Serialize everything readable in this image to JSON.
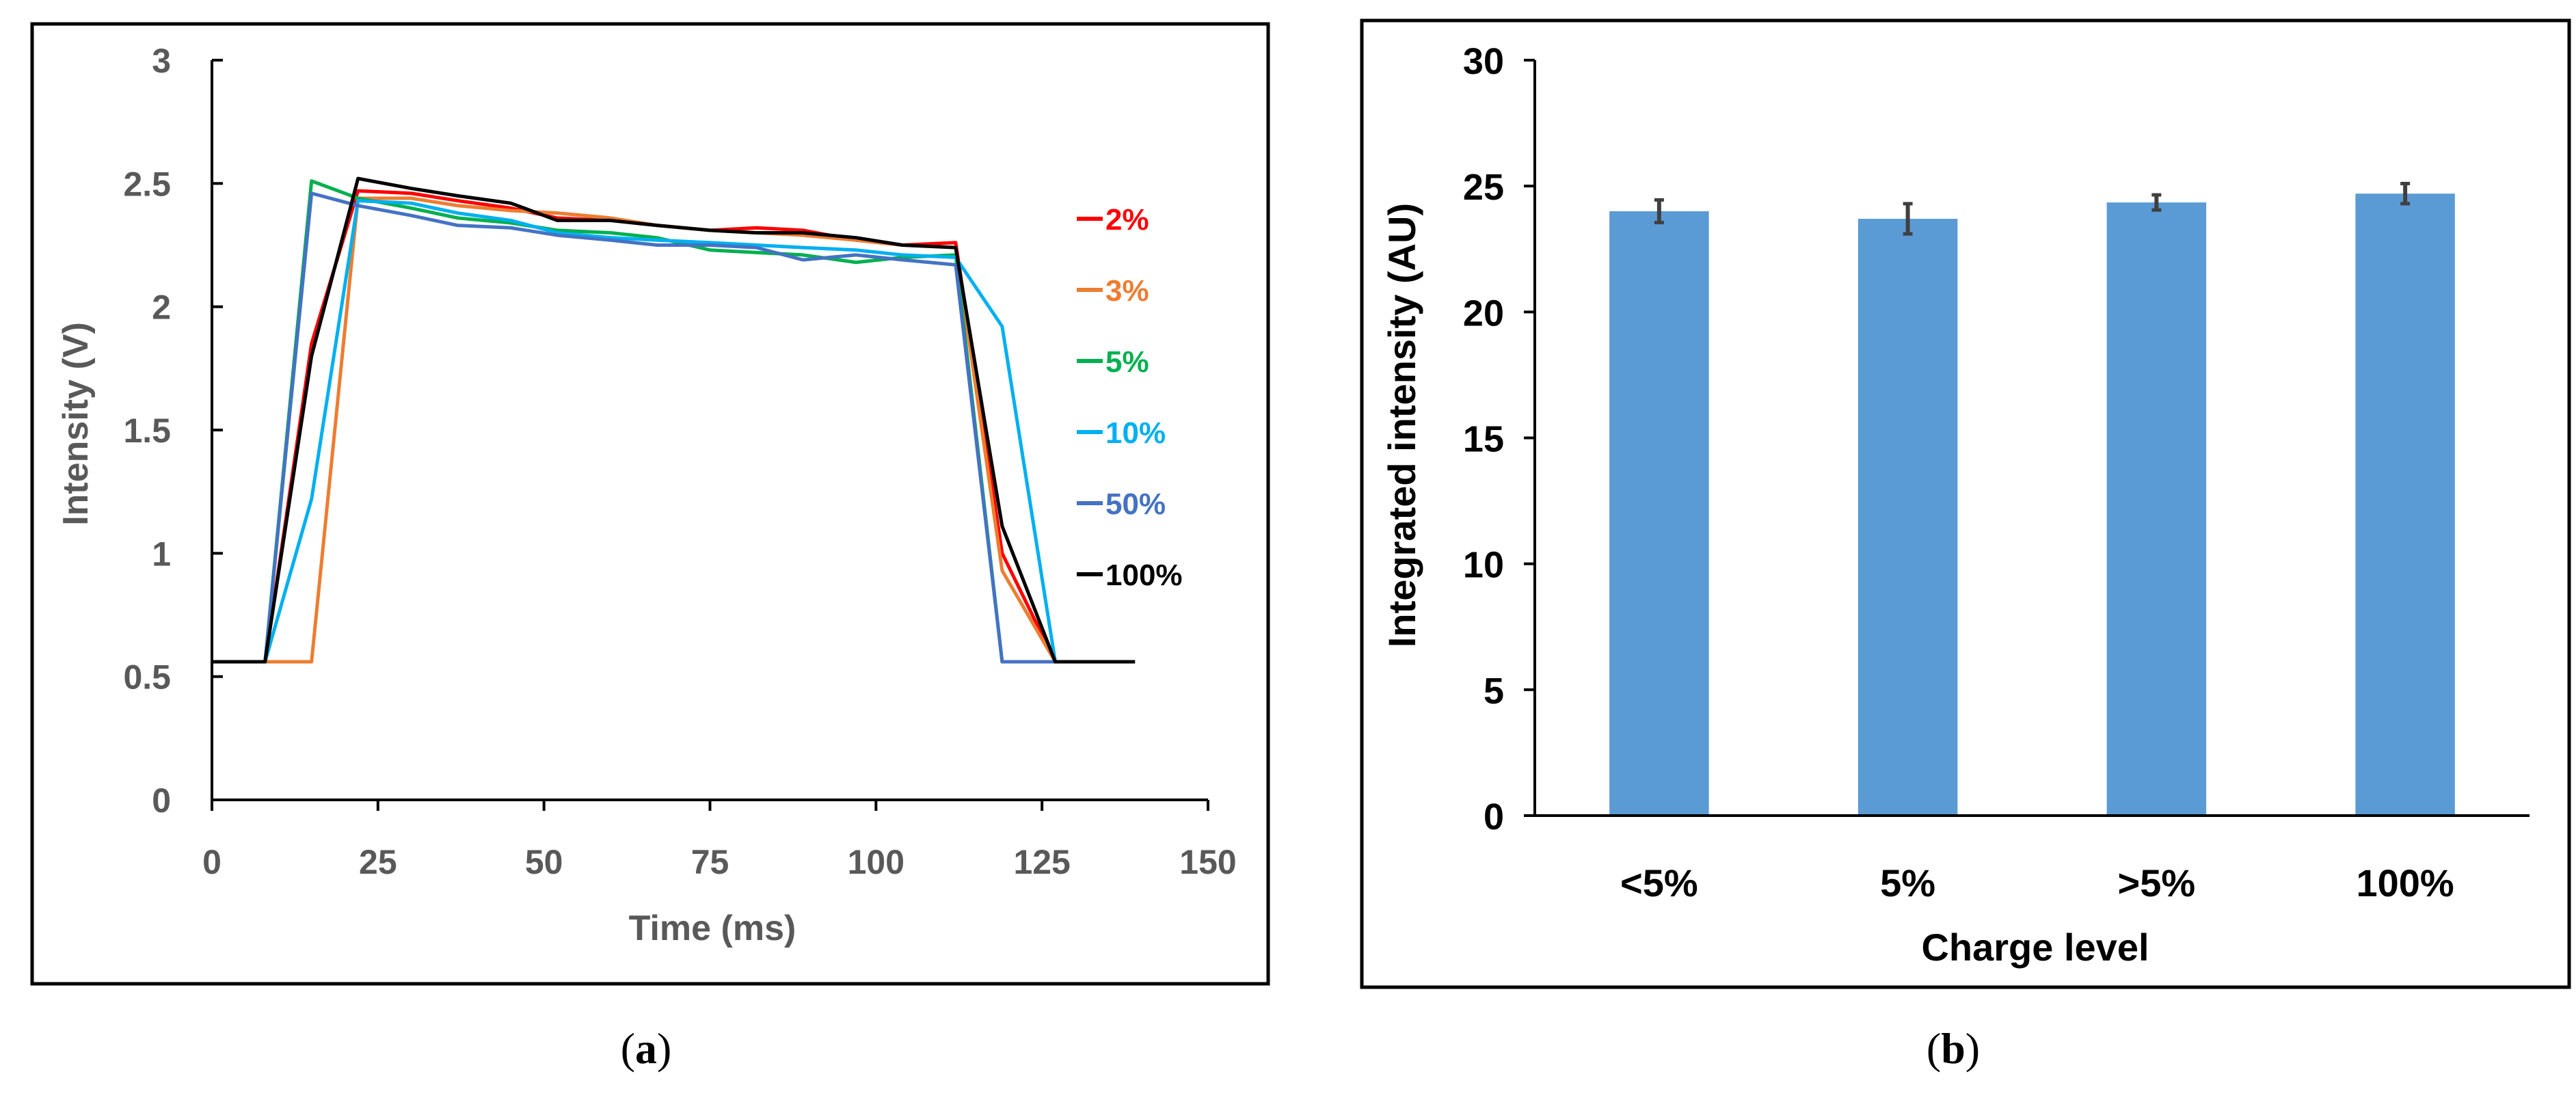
{
  "chart_data": [
    {
      "panel": "(a)",
      "type": "line",
      "title": "",
      "xlabel": "Time (ms)",
      "ylabel": "Intensity (V)",
      "xlim": [
        0,
        150
      ],
      "ylim": [
        0,
        3
      ],
      "x_ticks": [
        "0",
        "25",
        "50",
        "75",
        "100",
        "125",
        "150"
      ],
      "y_ticks": [
        "0",
        "0.5",
        "1",
        "1.5",
        "2",
        "2.5",
        "3"
      ],
      "legend_position": "right",
      "series": [
        {
          "name": "2%",
          "color": "#ff0000",
          "x": [
            0,
            8,
            15,
            22,
            30,
            37,
            45,
            52,
            60,
            67,
            75,
            82,
            89,
            97,
            104,
            112,
            119,
            127,
            139
          ],
          "y": [
            0.56,
            0.56,
            1.85,
            2.47,
            2.46,
            2.43,
            2.4,
            2.36,
            2.35,
            2.33,
            2.31,
            2.32,
            2.31,
            2.27,
            2.25,
            2.26,
            1.0,
            0.56,
            0.56
          ]
        },
        {
          "name": "3%",
          "color": "#ed7d31",
          "x": [
            0,
            8,
            15,
            22,
            30,
            37,
            45,
            52,
            60,
            67,
            75,
            82,
            89,
            97,
            104,
            112,
            119,
            127,
            139
          ],
          "y": [
            0.56,
            0.56,
            0.56,
            2.44,
            2.44,
            2.41,
            2.39,
            2.38,
            2.36,
            2.33,
            2.31,
            2.3,
            2.29,
            2.27,
            2.25,
            2.24,
            0.93,
            0.56,
            0.56
          ]
        },
        {
          "name": "5%",
          "color": "#00b050",
          "x": [
            0,
            8,
            15,
            22,
            30,
            37,
            45,
            52,
            60,
            67,
            75,
            82,
            89,
            97,
            104,
            112,
            119,
            127,
            139
          ],
          "y": [
            0.56,
            0.56,
            2.51,
            2.44,
            2.4,
            2.36,
            2.34,
            2.31,
            2.3,
            2.28,
            2.23,
            2.22,
            2.21,
            2.18,
            2.2,
            2.21,
            0.56,
            0.56,
            0.56
          ]
        },
        {
          "name": "10%",
          "color": "#00b0f0",
          "x": [
            0,
            8,
            15,
            22,
            30,
            37,
            45,
            52,
            60,
            67,
            75,
            82,
            89,
            97,
            104,
            112,
            119,
            127,
            139
          ],
          "y": [
            0.56,
            0.56,
            1.22,
            2.43,
            2.42,
            2.38,
            2.35,
            2.3,
            2.28,
            2.27,
            2.26,
            2.25,
            2.24,
            2.23,
            2.21,
            2.2,
            1.92,
            0.56,
            0.56
          ]
        },
        {
          "name": "50%",
          "color": "#4472c4",
          "x": [
            0,
            8,
            15,
            22,
            30,
            37,
            45,
            52,
            60,
            67,
            75,
            82,
            89,
            97,
            104,
            112,
            119,
            127,
            139
          ],
          "y": [
            0.56,
            0.56,
            2.46,
            2.41,
            2.37,
            2.33,
            2.32,
            2.29,
            2.27,
            2.25,
            2.25,
            2.24,
            2.19,
            2.21,
            2.19,
            2.17,
            0.56,
            0.56,
            0.56
          ]
        },
        {
          "name": "100%",
          "color": "#000000",
          "x": [
            0,
            8,
            15,
            22,
            30,
            37,
            45,
            52,
            60,
            67,
            75,
            82,
            89,
            97,
            104,
            112,
            119,
            127,
            139
          ],
          "y": [
            0.56,
            0.56,
            1.8,
            2.52,
            2.48,
            2.45,
            2.42,
            2.35,
            2.35,
            2.33,
            2.31,
            2.3,
            2.3,
            2.28,
            2.25,
            2.24,
            1.11,
            0.56,
            0.56
          ]
        }
      ]
    },
    {
      "panel": "(b)",
      "type": "bar",
      "title": "",
      "xlabel": "Charge level",
      "ylabel": "Integrated intensity (AU)",
      "ylim": [
        0,
        30
      ],
      "y_ticks": [
        "0",
        "5",
        "10",
        "15",
        "20",
        "25",
        "30"
      ],
      "categories": [
        "<5%",
        "5%",
        ">5%",
        "100%"
      ],
      "values": [
        24.0,
        23.7,
        24.35,
        24.7
      ],
      "errors": [
        0.45,
        0.6,
        0.3,
        0.4
      ],
      "bar_color": "#5b9bd5"
    }
  ],
  "captions": {
    "a_open": "(",
    "a_letter": "a",
    "a_close": ")",
    "b_open": "(",
    "b_letter": "b",
    "b_close": ")"
  }
}
